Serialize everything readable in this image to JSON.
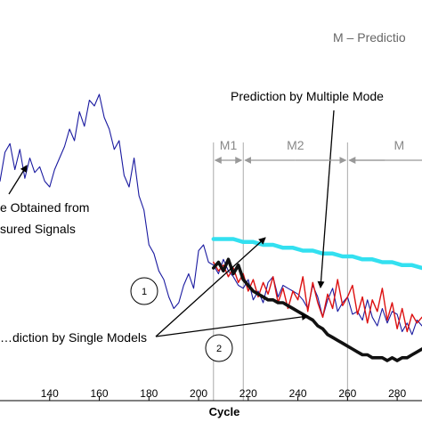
{
  "chart_data": {
    "type": "line",
    "title": "",
    "xlabel": "Cycle",
    "ylabel": "",
    "xlim": [
      120,
      290
    ],
    "ylim": [
      0,
      100
    ],
    "xticks": [
      140,
      160,
      180,
      200,
      220,
      240,
      260,
      280
    ],
    "grid": false,
    "series": [
      {
        "name": "…e Obtained from …sured Signals",
        "color": "#1a1aa0",
        "x": [
          120,
          122,
          124,
          126,
          128,
          130,
          132,
          134,
          136,
          138,
          140,
          142,
          144,
          146,
          148,
          150,
          152,
          154,
          156,
          158,
          160,
          162,
          164,
          166,
          168,
          170,
          172,
          174,
          176,
          178,
          180,
          182,
          184,
          186,
          188,
          190,
          192,
          194,
          196,
          198,
          200,
          202,
          204,
          206,
          208,
          210,
          212,
          214,
          216,
          218,
          220,
          222,
          224,
          226,
          228,
          230,
          232,
          234,
          236,
          238,
          240,
          242,
          244,
          246,
          248,
          250,
          252,
          254,
          256,
          258,
          260,
          262,
          264,
          266,
          268,
          270,
          272,
          274,
          276,
          278,
          280,
          282,
          284,
          286,
          288,
          290
        ],
        "y": [
          62,
          72,
          75,
          66,
          73,
          63,
          70,
          65,
          67,
          62,
          60,
          66,
          70,
          74,
          80,
          76,
          86,
          81,
          90,
          88,
          92,
          84,
          80,
          73,
          76,
          64,
          60,
          70,
          57,
          52,
          40,
          37,
          31,
          28,
          22,
          18,
          20,
          26,
          30,
          25,
          38,
          40,
          34,
          33,
          30,
          35,
          31,
          29,
          26,
          25,
          28,
          21,
          24,
          20,
          27,
          29,
          22,
          26,
          25,
          24,
          23,
          21,
          18,
          26,
          22,
          15,
          21,
          25,
          17,
          20,
          22,
          16,
          17,
          14,
          21,
          15,
          12,
          18,
          13,
          17,
          16,
          10,
          13,
          9,
          14,
          12
        ]
      },
      {
        "name": "",
        "color": "#dd1111",
        "x": [
          206,
          208,
          210,
          212,
          214,
          216,
          218,
          220,
          222,
          224,
          226,
          228,
          230,
          232,
          234,
          236,
          238,
          240,
          242,
          244,
          246,
          248,
          250,
          252,
          254,
          256,
          258,
          260,
          262,
          264,
          266,
          268,
          270,
          272,
          274,
          276,
          278,
          280,
          282,
          284,
          286,
          288,
          290
        ],
        "y": [
          34,
          31,
          33,
          29,
          32,
          27,
          30,
          24,
          28,
          22,
          27,
          23,
          29,
          20,
          25,
          18,
          24,
          21,
          29,
          17,
          27,
          20,
          15,
          23,
          18,
          28,
          19,
          22,
          26,
          16,
          22,
          13,
          21,
          17,
          25,
          14,
          20,
          11,
          18,
          10,
          16,
          13,
          15
        ]
      },
      {
        "name": "",
        "color": "#111111",
        "x": [
          206,
          208,
          210,
          212,
          214,
          216,
          218,
          220,
          222,
          224,
          226,
          228,
          230,
          232,
          234,
          236,
          238,
          240,
          242,
          244,
          246,
          248,
          250,
          252,
          254,
          256,
          258,
          260,
          262,
          264,
          266,
          268,
          270,
          272,
          274,
          276,
          278,
          280,
          282,
          284,
          286,
          288,
          290
        ],
        "y": [
          32,
          34,
          31,
          35,
          30,
          33,
          28,
          26,
          24,
          23,
          22,
          21,
          21,
          20,
          20,
          19,
          18,
          17,
          16,
          15,
          14,
          12,
          11,
          9,
          8,
          7,
          6,
          5,
          4,
          3,
          2,
          2,
          1,
          1,
          1,
          0,
          1,
          0,
          1,
          1,
          2,
          3,
          4
        ]
      },
      {
        "name": "",
        "color": "#33e0f0",
        "x": [
          206,
          210,
          214,
          218,
          222,
          226,
          230,
          234,
          238,
          242,
          246,
          250,
          254,
          258,
          262,
          266,
          270,
          274,
          278,
          282,
          286,
          290
        ],
        "y": [
          42,
          42,
          42,
          41,
          41,
          40,
          40,
          39,
          39,
          38,
          38,
          37,
          37,
          36,
          36,
          35,
          35,
          34,
          34,
          33,
          33,
          32
        ]
      }
    ],
    "annotations": {
      "legend_note": "M – Predictio",
      "multi_label": "Prediction by Multiple Mode",
      "single_label": "…diction by Single Models",
      "obtained_label_1": "e Obtained from",
      "obtained_label_2": "sured Signals",
      "region_labels": [
        "M1",
        "M2",
        "M"
      ],
      "region_bounds": [
        206,
        218,
        260,
        290
      ],
      "circle_labels": [
        {
          "text": "1",
          "x": 195,
          "y": 24
        },
        {
          "text": "2",
          "x": 222,
          "y": 8
        }
      ]
    }
  }
}
